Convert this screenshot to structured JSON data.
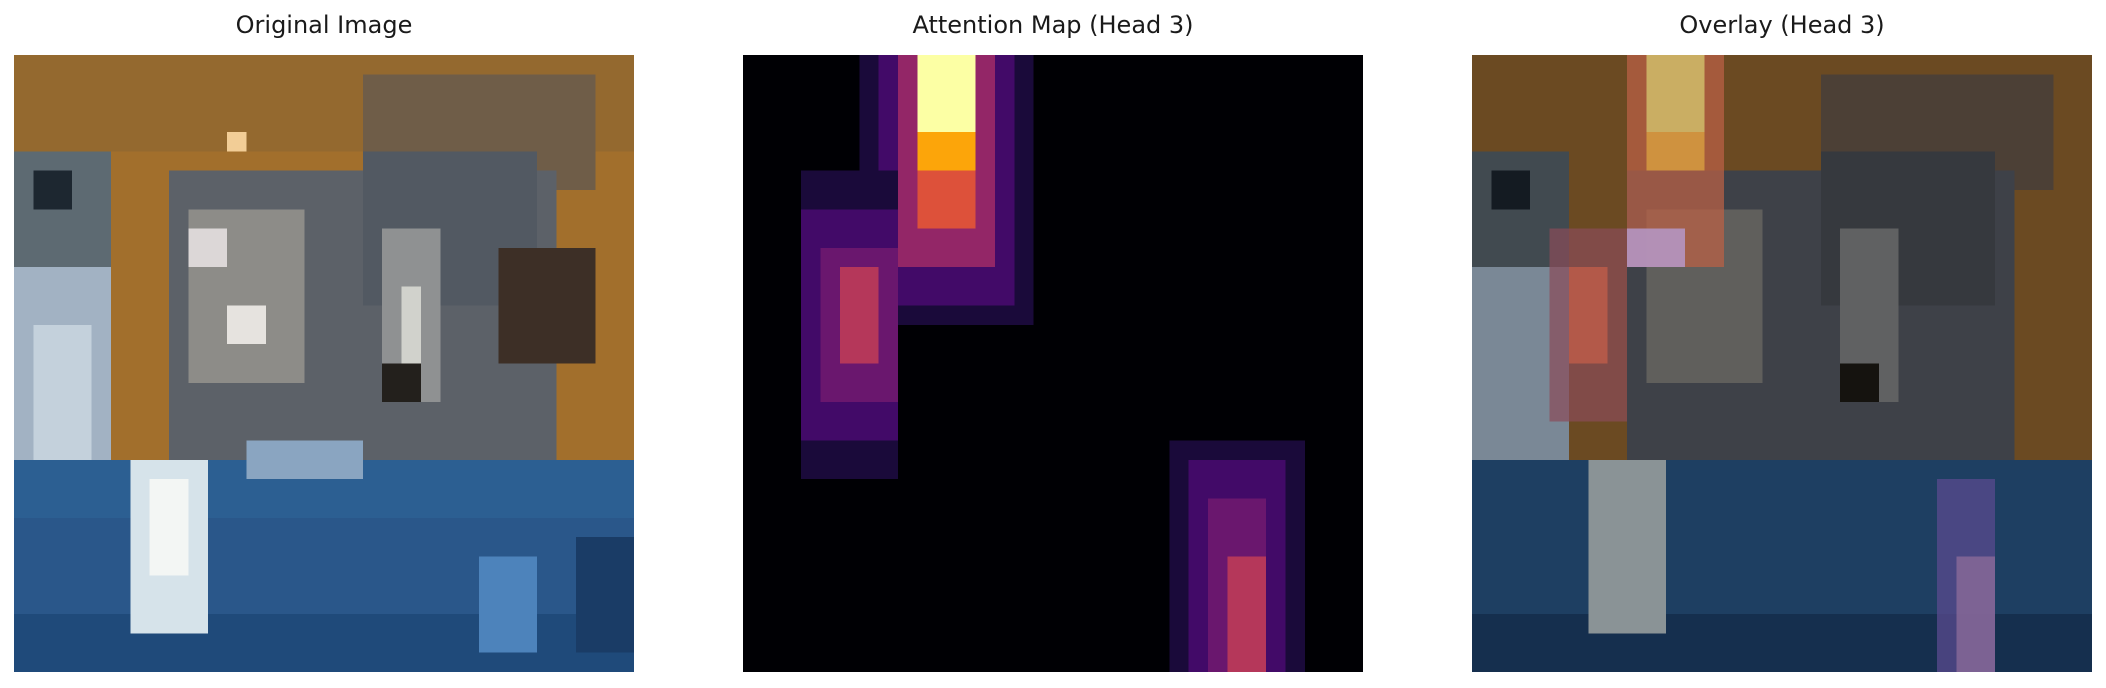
{
  "figure": {
    "panels": [
      {
        "title": "Original Image"
      },
      {
        "title": "Attention Map (Head 3)"
      },
      {
        "title": "Overlay (Head 3)"
      }
    ]
  },
  "colors": {
    "background": "#ffffff",
    "title_text": "#1a1a1a",
    "heatmap_colormap": [
      "#000004",
      "#420a68",
      "#932667",
      "#dd513a",
      "#fca50a",
      "#fcffa4"
    ]
  }
}
